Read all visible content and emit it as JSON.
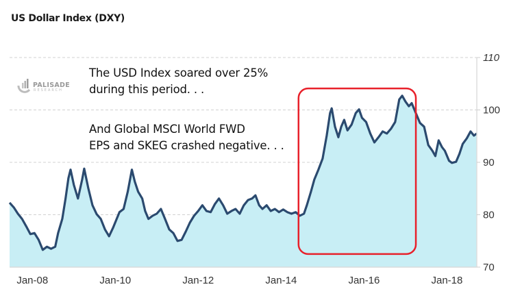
{
  "chart_data": {
    "type": "area",
    "title": "US Dollar Index (DXY)",
    "xlabel": "",
    "ylabel": "",
    "ylim": [
      70,
      110
    ],
    "yticks": [
      70,
      80,
      90,
      100,
      110
    ],
    "ytick_labels": [
      "70",
      "80",
      "90",
      "100",
      "110"
    ],
    "xlim": [
      2007.45,
      2018.72
    ],
    "xticks": [
      2008,
      2010,
      2012,
      2014,
      2016,
      2018
    ],
    "xtick_labels": [
      "Jan-08",
      "Jan-10",
      "Jan-12",
      "Jan-14",
      "Jan-16",
      "Jan-18"
    ],
    "grid": "horizontal dashed",
    "y_axis_side": "right",
    "series": [
      {
        "name": "DXY",
        "x": [
          2007.45,
          2007.55,
          2007.65,
          2007.75,
          2007.85,
          2007.95,
          2008.05,
          2008.15,
          2008.25,
          2008.35,
          2008.45,
          2008.55,
          2008.62,
          2008.72,
          2008.8,
          2008.87,
          2008.92,
          2009.0,
          2009.1,
          2009.2,
          2009.25,
          2009.35,
          2009.45,
          2009.55,
          2009.65,
          2009.75,
          2009.85,
          2009.95,
          2010.1,
          2010.2,
          2010.3,
          2010.4,
          2010.47,
          2010.55,
          2010.65,
          2010.72,
          2010.8,
          2010.9,
          2011.0,
          2011.1,
          2011.2,
          2011.3,
          2011.4,
          2011.5,
          2011.6,
          2011.7,
          2011.8,
          2011.9,
          2012.0,
          2012.1,
          2012.2,
          2012.3,
          2012.4,
          2012.5,
          2012.6,
          2012.7,
          2012.8,
          2012.9,
          2013.0,
          2013.1,
          2013.2,
          2013.3,
          2013.38,
          2013.47,
          2013.55,
          2013.65,
          2013.75,
          2013.85,
          2013.95,
          2014.05,
          2014.15,
          2014.25,
          2014.35,
          2014.45,
          2014.55,
          2014.62,
          2014.72,
          2014.8,
          2014.9,
          2015.0,
          2015.1,
          2015.18,
          2015.22,
          2015.3,
          2015.38,
          2015.45,
          2015.52,
          2015.6,
          2015.7,
          2015.8,
          2015.88,
          2015.95,
          2016.05,
          2016.15,
          2016.25,
          2016.35,
          2016.45,
          2016.55,
          2016.65,
          2016.75,
          2016.85,
          2016.92,
          2017.0,
          2017.08,
          2017.15,
          2017.25,
          2017.35,
          2017.45,
          2017.55,
          2017.65,
          2017.72,
          2017.8,
          2017.88,
          2017.95,
          2018.05,
          2018.12,
          2018.22,
          2018.3,
          2018.38,
          2018.48,
          2018.57,
          2018.65,
          2018.72
        ],
        "values": [
          82.3,
          81.4,
          80.2,
          79.2,
          77.8,
          76.3,
          76.5,
          75.2,
          73.3,
          73.9,
          73.5,
          73.9,
          76.5,
          79.2,
          83.1,
          87.0,
          88.6,
          85.7,
          83.1,
          86.7,
          88.8,
          85.0,
          81.8,
          80.1,
          79.2,
          77.2,
          75.9,
          77.6,
          80.5,
          81.1,
          84.4,
          88.6,
          86.3,
          84.4,
          83.1,
          80.7,
          79.2,
          79.8,
          80.2,
          81.1,
          79.2,
          77.2,
          76.5,
          75.0,
          75.2,
          76.8,
          78.5,
          79.8,
          80.7,
          81.8,
          80.7,
          80.5,
          82.0,
          83.1,
          81.8,
          80.2,
          80.7,
          81.1,
          80.2,
          81.8,
          82.8,
          83.1,
          83.7,
          81.8,
          81.1,
          81.8,
          80.7,
          81.1,
          80.5,
          81.0,
          80.5,
          80.2,
          80.5,
          79.8,
          80.2,
          81.8,
          84.4,
          86.7,
          88.6,
          90.7,
          95.1,
          99.4,
          100.3,
          96.8,
          94.8,
          96.8,
          98.1,
          96.1,
          97.2,
          99.4,
          100.1,
          98.5,
          97.7,
          95.5,
          93.8,
          94.8,
          95.9,
          95.5,
          96.4,
          97.7,
          102.0,
          102.7,
          101.6,
          100.7,
          101.3,
          99.4,
          97.5,
          96.8,
          93.3,
          92.2,
          91.2,
          94.2,
          92.9,
          92.2,
          90.3,
          89.9,
          90.1,
          91.6,
          93.5,
          94.6,
          95.9,
          95.1,
          95.5
        ]
      }
    ],
    "colors": {
      "line": "#2b4a6f",
      "fill": "#c8eef5",
      "highlight_box": "#e8202a",
      "grid": "#d0d0d0"
    },
    "highlight": {
      "label": "highlight-box",
      "x_range": [
        2014.42,
        2017.25
      ],
      "y_range": [
        72.5,
        104.1
      ]
    },
    "annotations": [
      {
        "lines": [
          "The USD Index soared over 25%",
          "during this period. . ."
        ]
      },
      {
        "lines": [
          "And Global MSCI World FWD",
          "EPS and SKEG crashed negative. . ."
        ]
      }
    ]
  },
  "logo": {
    "name": "PALISADE",
    "sub": "RESEARCH"
  }
}
